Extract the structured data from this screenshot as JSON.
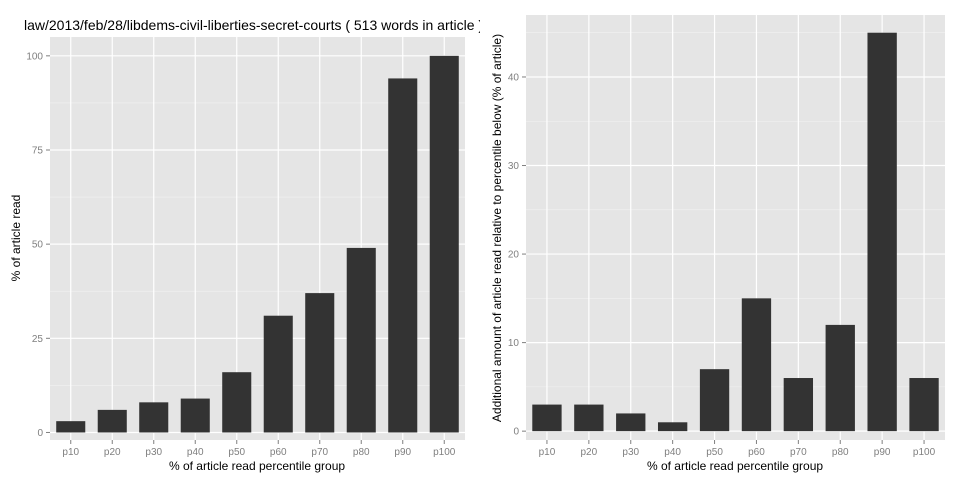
{
  "chart_data": [
    {
      "type": "bar",
      "title": "law/2013/feb/28/libdems-civil-liberties-secret-courts ( 513 words in article )",
      "xlabel": "% of article read percentile group",
      "ylabel": "% of article read",
      "categories": [
        "p10",
        "p20",
        "p30",
        "p40",
        "p50",
        "p60",
        "p70",
        "p80",
        "p90",
        "p100"
      ],
      "values": [
        3,
        6,
        8,
        9,
        16,
        31,
        37,
        49,
        94,
        100
      ],
      "ylim": [
        -2,
        105
      ],
      "yticks": [
        0,
        25,
        50,
        75,
        100
      ],
      "grid": true
    },
    {
      "type": "bar",
      "title": "",
      "xlabel": "% of article read percentile group",
      "ylabel": "Additional amount of article read relative to percentile below (% of article)",
      "categories": [
        "p10",
        "p20",
        "p30",
        "p40",
        "p50",
        "p60",
        "p70",
        "p80",
        "p90",
        "p100"
      ],
      "values": [
        3,
        3,
        2,
        1,
        7,
        15,
        6,
        12,
        45,
        6
      ],
      "ylim": [
        -1,
        47
      ],
      "yticks": [
        0,
        10,
        20,
        30,
        40
      ],
      "grid": true
    }
  ],
  "colors": {
    "panel_background": "#e5e5e5",
    "bar": "#333333",
    "grid": "#ffffff"
  }
}
